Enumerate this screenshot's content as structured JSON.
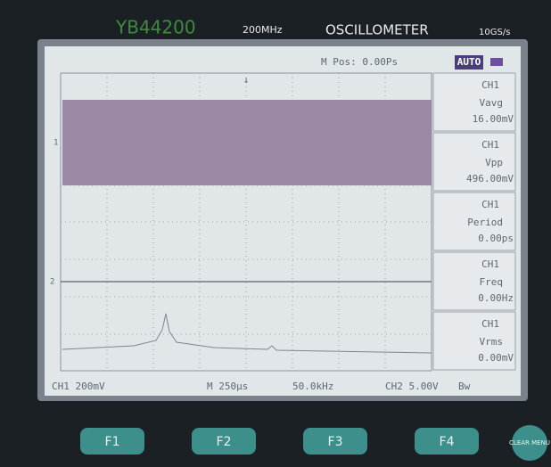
{
  "header": {
    "model": "YB44200",
    "bandwidth": "200MHz",
    "name": "OSCILLOMETER",
    "sample_rate": "10GS/s"
  },
  "status": {
    "position": "M Pos: 0.00Ps",
    "mode": "AUTO"
  },
  "channel_markers": [
    "1",
    "2"
  ],
  "measurements": [
    {
      "channel": "CH1",
      "label": "Vavg",
      "value": "16.00mV"
    },
    {
      "channel": "CH1",
      "label": "Vpp",
      "value": "496.00mV"
    },
    {
      "channel": "CH1",
      "label": "Period",
      "value": "0.00ps"
    },
    {
      "channel": "CH1",
      "label": "Freq",
      "value": "0.00Hz"
    },
    {
      "channel": "CH1",
      "label": "Vrms",
      "value": "0.00mV"
    }
  ],
  "footer": {
    "ch1": "CH1 200mV",
    "timebase": "M 250μs",
    "frequency": "50.0kHz",
    "ch2": "CH2 5.00V",
    "bandwidth_limit": "Bw"
  },
  "buttons": [
    "F1",
    "F2",
    "F3",
    "F4",
    "CLEAR MENU"
  ]
}
